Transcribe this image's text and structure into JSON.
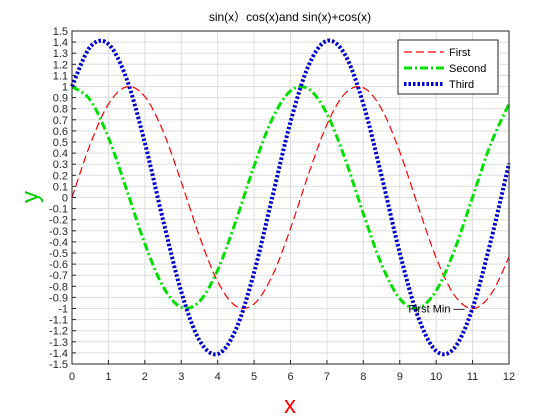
{
  "chart_data": {
    "type": "line",
    "title": "sin(x）cos(x)and sin(x)+cos(x)",
    "xlabel": "x",
    "ylabel": "y",
    "xlabel_color": "#ff0000",
    "ylabel_color": "#00cc00",
    "xlim": [
      0,
      12
    ],
    "ylim": [
      -1.5,
      1.5
    ],
    "xticks": [
      0,
      1,
      2,
      3,
      4,
      5,
      6,
      7,
      8,
      9,
      10,
      11,
      12
    ],
    "yticks": [
      -1.5,
      -1.4,
      -1.3,
      -1.2,
      -1.1,
      -1,
      -0.9,
      -0.8,
      -0.7,
      -0.6,
      -0.5,
      -0.4,
      -0.3,
      -0.2,
      -0.1,
      0,
      0.1,
      0.2,
      0.3,
      0.4,
      0.5,
      0.6,
      0.7,
      0.8,
      0.9,
      1,
      1.1,
      1.2,
      1.3,
      1.4,
      1.5
    ],
    "grid": true,
    "legend_position": "top-right",
    "x": [
      0,
      0.5,
      1,
      1.5,
      2,
      2.5,
      3,
      3.5,
      4,
      4.5,
      5,
      5.5,
      6,
      6.5,
      7,
      7.5,
      8,
      8.5,
      9,
      9.5,
      10,
      10.5,
      11,
      11.5,
      12
    ],
    "series": [
      {
        "name": "First",
        "color": "#ff0000",
        "style": "dashed",
        "values": [
          0,
          0.479,
          0.841,
          0.997,
          0.909,
          0.598,
          0.141,
          -0.351,
          -0.757,
          -0.978,
          -0.959,
          -0.706,
          -0.279,
          0.215,
          0.657,
          0.938,
          0.989,
          0.798,
          0.412,
          -0.075,
          -0.544,
          -0.88,
          -1,
          -0.875,
          -0.537
        ]
      },
      {
        "name": "Second",
        "color": "#00e000",
        "style": "dashdot",
        "values": [
          1,
          0.878,
          0.54,
          0.071,
          -0.416,
          -0.801,
          -0.99,
          -0.936,
          -0.654,
          -0.211,
          0.284,
          0.709,
          0.96,
          0.977,
          0.754,
          0.347,
          -0.146,
          -0.602,
          -0.911,
          -0.997,
          -0.839,
          -0.476,
          0.004,
          0.483,
          0.844
        ]
      },
      {
        "name": "Third",
        "color": "#0000cc",
        "style": "dotted",
        "values": [
          1,
          1.357,
          1.382,
          1.068,
          0.493,
          -0.203,
          -0.849,
          -1.287,
          -1.41,
          -1.189,
          -0.675,
          0.002,
          0.681,
          1.192,
          1.411,
          1.285,
          0.843,
          0.196,
          -0.499,
          -1.072,
          -1.383,
          -1.356,
          -0.996,
          -0.392,
          0.307
        ]
      }
    ],
    "annotations": [
      {
        "text": "First Min",
        "x": 9.4,
        "y": -1.0
      }
    ]
  }
}
